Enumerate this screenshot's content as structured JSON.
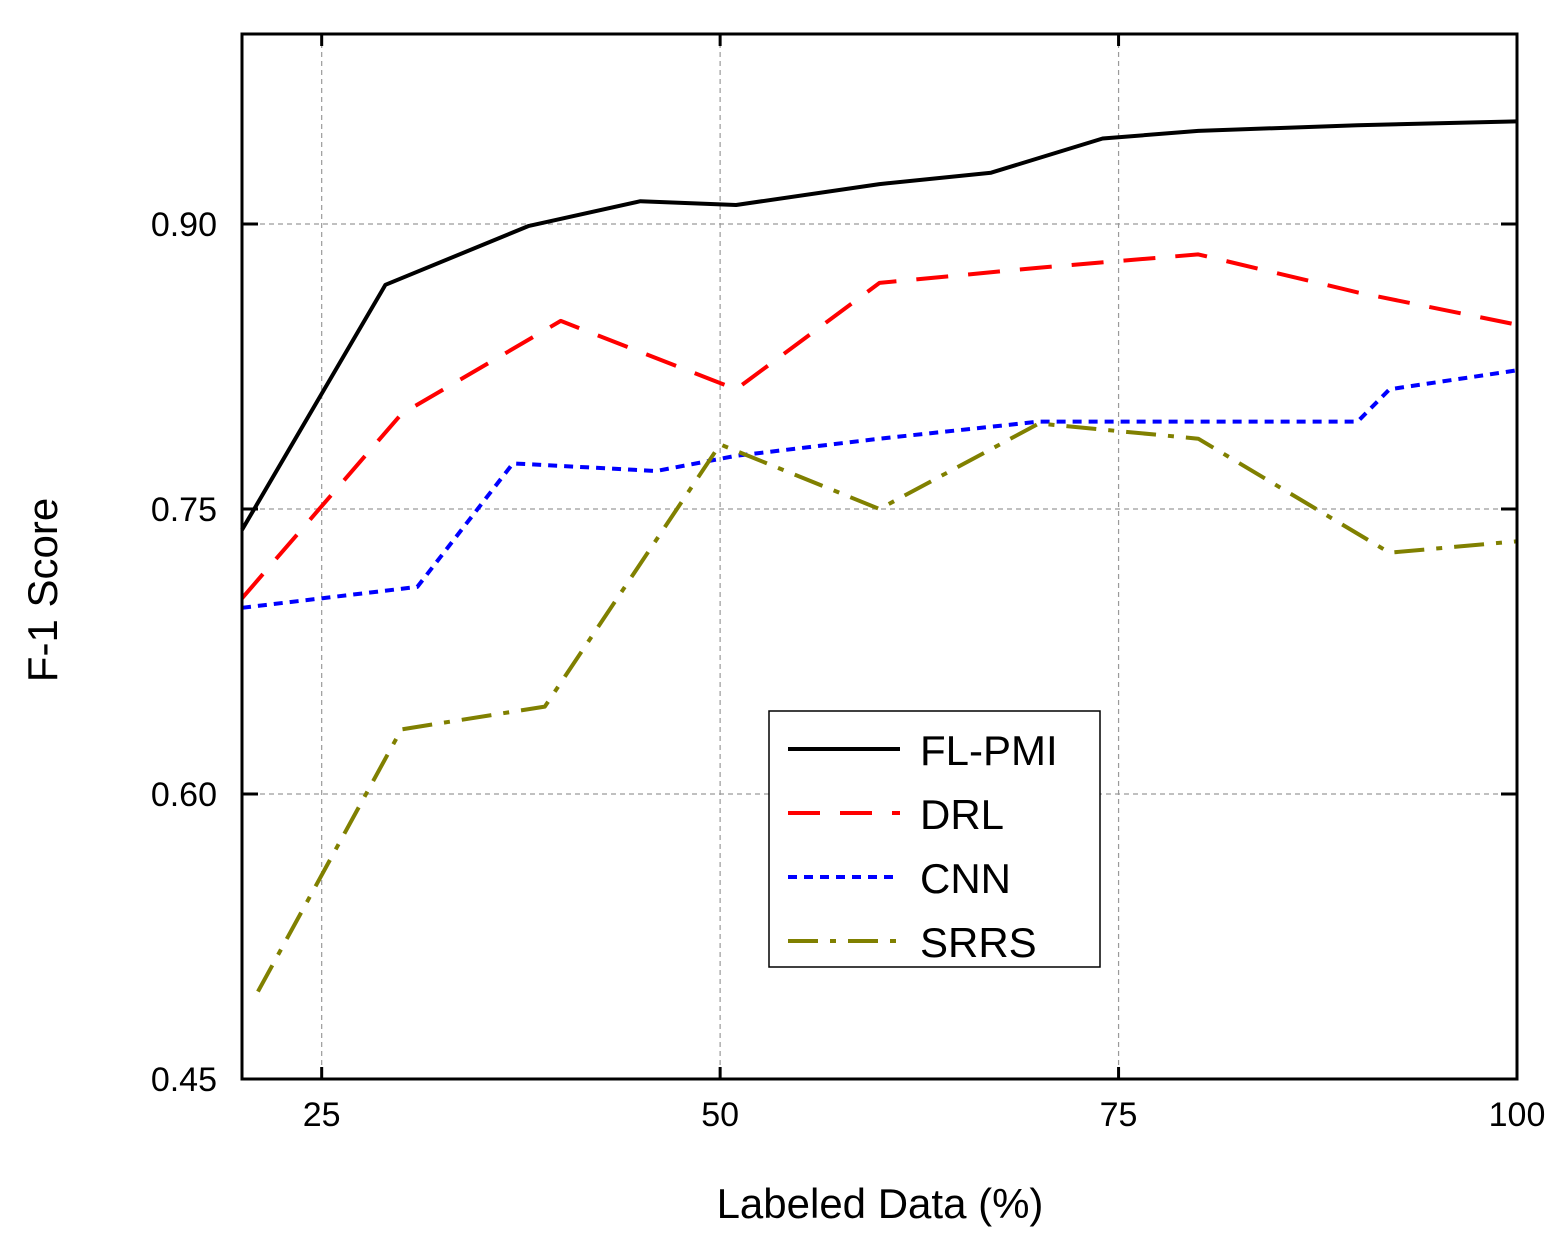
{
  "chart_data": {
    "type": "line",
    "title": "",
    "xlabel": "Labeled Data (%)",
    "ylabel": "F-1 Score",
    "xlim": [
      20,
      100
    ],
    "ylim": [
      0.45,
      1.0
    ],
    "xticks": [
      25,
      50,
      75,
      100
    ],
    "xtick_labels": [
      "25",
      "50",
      "75",
      "100"
    ],
    "yticks": [
      0.45,
      0.6,
      0.75,
      0.9
    ],
    "ytick_labels": [
      "0.45",
      "0.60",
      "0.75",
      "0.90"
    ],
    "grid": true,
    "legend_position": "bottom-center",
    "series": [
      {
        "name": "FL-PMI",
        "color": "#000000",
        "style": "solid",
        "x": [
          20,
          29,
          38,
          45,
          51,
          60,
          67,
          74,
          80,
          90,
          100
        ],
        "y": [
          0.739,
          0.868,
          0.899,
          0.912,
          0.91,
          0.921,
          0.927,
          0.945,
          0.949,
          0.952,
          0.954
        ]
      },
      {
        "name": "DRL",
        "color": "#ff0000",
        "style": "dashed",
        "x": [
          20,
          30,
          40,
          51,
          60,
          70,
          80,
          90,
          100
        ],
        "y": [
          0.703,
          0.8,
          0.849,
          0.813,
          0.869,
          0.877,
          0.884,
          0.864,
          0.847
        ]
      },
      {
        "name": "CNN",
        "color": "#0000ff",
        "style": "dotted",
        "x": [
          20,
          31,
          37,
          46,
          51,
          60,
          70,
          80,
          90,
          92,
          100
        ],
        "y": [
          0.698,
          0.709,
          0.774,
          0.77,
          0.778,
          0.787,
          0.796,
          0.796,
          0.796,
          0.813,
          0.823
        ]
      },
      {
        "name": "SRRS",
        "color": "#808000",
        "style": "dashdot",
        "x": [
          21,
          30,
          39,
          50,
          60,
          70,
          80,
          92,
          100
        ],
        "y": [
          0.496,
          0.634,
          0.646,
          0.784,
          0.75,
          0.795,
          0.787,
          0.727,
          0.733
        ]
      }
    ]
  }
}
